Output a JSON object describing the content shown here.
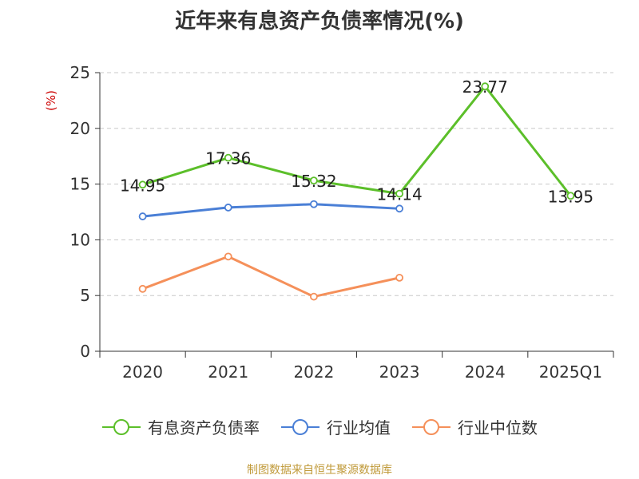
{
  "chart_data": {
    "type": "line",
    "title": "近年来有息资产负债率情况(%)",
    "ylabel": "(%)",
    "xlabel": "",
    "categories": [
      "2020",
      "2021",
      "2022",
      "2023",
      "2024",
      "2025Q1"
    ],
    "ylim": [
      0,
      25
    ],
    "yticks": [
      0,
      5,
      10,
      15,
      20,
      25
    ],
    "grid": true,
    "legend_position": "bottom",
    "series": [
      {
        "name": "有息资产负债率",
        "color": "#5cbf2a",
        "values": [
          14.95,
          17.36,
          15.32,
          14.14,
          23.77,
          13.95
        ],
        "labels": [
          "14.95",
          "17.36",
          "15.32",
          "14.14",
          "23.77",
          "13.95"
        ]
      },
      {
        "name": "行业均值",
        "color": "#4a7fd6",
        "values": [
          12.1,
          12.9,
          13.2,
          12.8,
          null,
          null
        ]
      },
      {
        "name": "行业中位数",
        "color": "#f5905a",
        "values": [
          5.6,
          8.5,
          4.9,
          6.6,
          null,
          null
        ]
      }
    ]
  },
  "source": "制图数据来自恒生聚源数据库"
}
